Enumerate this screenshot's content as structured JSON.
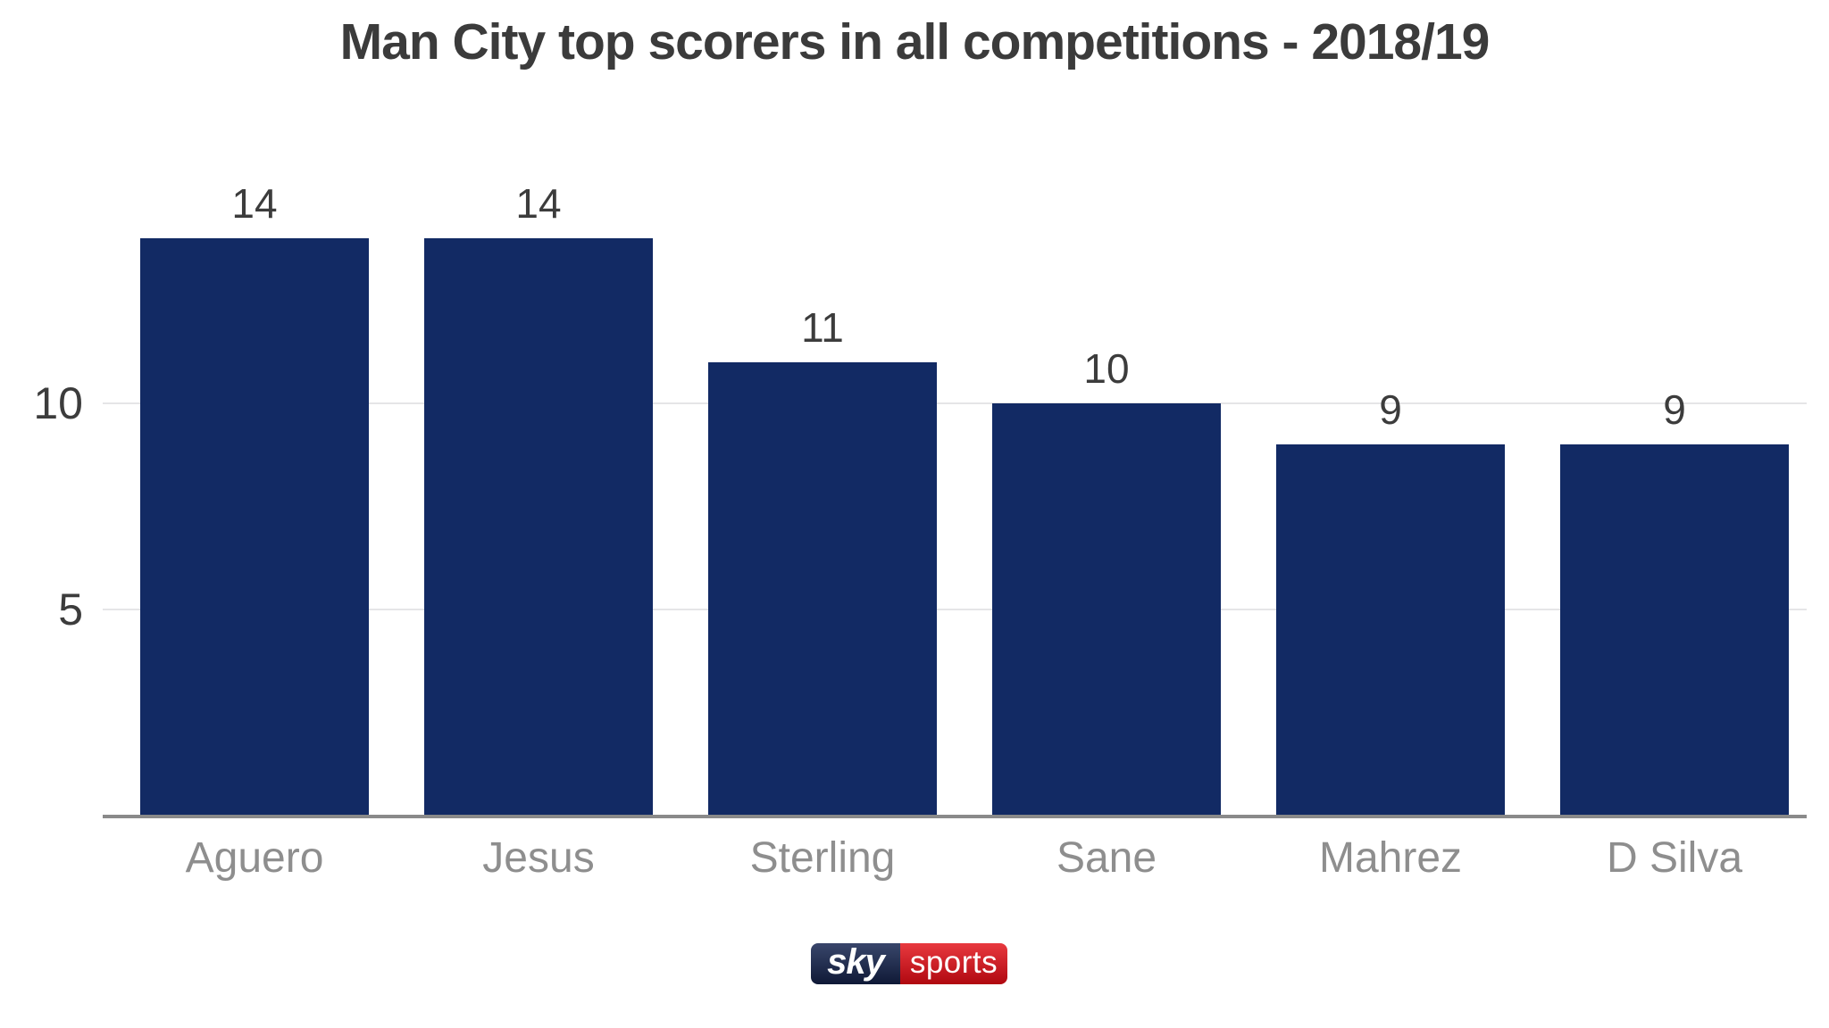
{
  "title": "Man City top scorers in all competitions - 2018/19",
  "chart_data": {
    "type": "bar",
    "title": "Man City top scorers in all competitions - 2018/19",
    "categories": [
      "Aguero",
      "Jesus",
      "Sterling",
      "Sane",
      "Mahrez",
      "D Silva"
    ],
    "values": [
      14,
      14,
      11,
      10,
      9,
      9
    ],
    "value_labels": [
      "14",
      "14",
      "11",
      "10",
      "9",
      "9"
    ],
    "xlabel": "",
    "ylabel": "",
    "yticks": [
      5,
      10
    ],
    "ytick_labels": [
      "5",
      "10"
    ],
    "ylim": [
      0,
      15
    ],
    "grid": "horizontal gridlines at yticks only",
    "legend_position": "none",
    "bar_color": "#122a64"
  },
  "colors": {
    "bar": "#122a64",
    "title_text": "#3b3b3b",
    "value_text": "#3c3c3c",
    "ytick_text": "#3c3c3c",
    "category_text": "#8e8e8e",
    "gridline": "#e5e5e7",
    "axis_line": "#8a8a8a",
    "logo_navy_top": "#39466b",
    "logo_navy_bottom": "#0f1936",
    "logo_red_top": "#e8393f",
    "logo_red_bottom": "#b00810",
    "logo_text": "#ffffff"
  },
  "branding": {
    "sky_label": "sky",
    "sports_label": "sports"
  }
}
